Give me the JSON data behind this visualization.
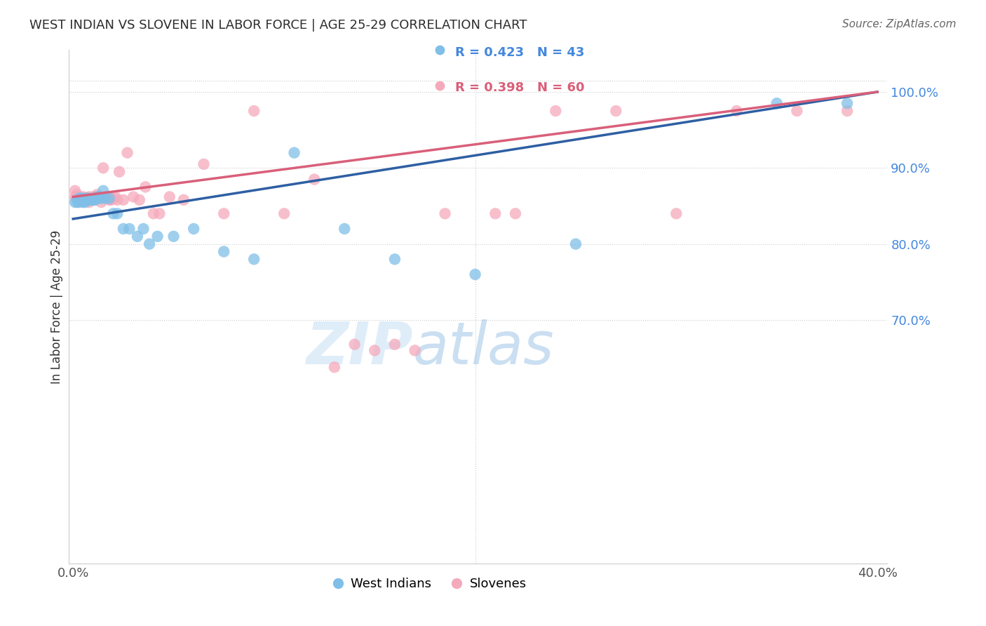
{
  "title": "WEST INDIAN VS SLOVENE IN LABOR FORCE | AGE 25-29 CORRELATION CHART",
  "source": "Source: ZipAtlas.com",
  "ylabel": "In Labor Force | Age 25-29",
  "blue_R": 0.423,
  "blue_N": 43,
  "pink_R": 0.398,
  "pink_N": 60,
  "blue_color": "#7fbfe8",
  "pink_color": "#f5aabc",
  "blue_line_color": "#2e5fa3",
  "pink_line_color": "#d95f7a",
  "title_color": "#2d2d2d",
  "source_color": "#666666",
  "right_axis_color": "#4488dd",
  "grid_color": "#cccccc",
  "background_color": "#ffffff",
  "xlim": [
    -0.002,
    0.405
  ],
  "ylim": [
    0.38,
    1.055
  ],
  "x_ticks": [
    0.0,
    0.4
  ],
  "x_tick_labels": [
    "0.0%",
    "40.0%"
  ],
  "y_ticks_right": [
    0.7,
    0.8,
    0.9,
    1.0
  ],
  "y_ticks_right_labels": [
    "70.0%",
    "80.0%",
    "90.0%",
    "100.0%"
  ],
  "blue_line_x0": 0.0,
  "blue_line_y0": 0.833,
  "blue_line_x1": 0.4,
  "blue_line_y1": 1.0,
  "pink_line_x0": 0.0,
  "pink_line_y0": 0.862,
  "pink_line_x1": 0.4,
  "pink_line_y1": 1.0,
  "blue_points_x": [
    0.001,
    0.002,
    0.003,
    0.003,
    0.004,
    0.004,
    0.005,
    0.005,
    0.005,
    0.006,
    0.006,
    0.007,
    0.007,
    0.008,
    0.009,
    0.01,
    0.01,
    0.011,
    0.012,
    0.013,
    0.014,
    0.015,
    0.016,
    0.018,
    0.02,
    0.022,
    0.025,
    0.028,
    0.032,
    0.035,
    0.038,
    0.042,
    0.05,
    0.06,
    0.075,
    0.09,
    0.11,
    0.135,
    0.16,
    0.2,
    0.25,
    0.35,
    0.385
  ],
  "blue_points_y": [
    0.855,
    0.855,
    0.86,
    0.855,
    0.858,
    0.86,
    0.857,
    0.86,
    0.855,
    0.858,
    0.855,
    0.86,
    0.86,
    0.858,
    0.858,
    0.86,
    0.858,
    0.858,
    0.862,
    0.862,
    0.86,
    0.87,
    0.86,
    0.86,
    0.84,
    0.84,
    0.82,
    0.82,
    0.81,
    0.82,
    0.8,
    0.81,
    0.81,
    0.82,
    0.79,
    0.78,
    0.92,
    0.82,
    0.78,
    0.76,
    0.8,
    0.985,
    0.985
  ],
  "pink_points_x": [
    0.001,
    0.001,
    0.002,
    0.002,
    0.003,
    0.003,
    0.004,
    0.004,
    0.005,
    0.005,
    0.006,
    0.006,
    0.007,
    0.007,
    0.008,
    0.008,
    0.009,
    0.01,
    0.01,
    0.011,
    0.012,
    0.013,
    0.014,
    0.015,
    0.016,
    0.017,
    0.018,
    0.019,
    0.02,
    0.021,
    0.022,
    0.023,
    0.025,
    0.027,
    0.03,
    0.033,
    0.036,
    0.04,
    0.043,
    0.048,
    0.055,
    0.065,
    0.075,
    0.09,
    0.105,
    0.12,
    0.14,
    0.16,
    0.185,
    0.21,
    0.24,
    0.27,
    0.3,
    0.33,
    0.36,
    0.385,
    0.13,
    0.15,
    0.17,
    0.22
  ],
  "pink_points_y": [
    0.862,
    0.87,
    0.865,
    0.86,
    0.862,
    0.858,
    0.86,
    0.858,
    0.862,
    0.858,
    0.86,
    0.858,
    0.86,
    0.858,
    0.862,
    0.855,
    0.858,
    0.862,
    0.858,
    0.858,
    0.865,
    0.862,
    0.855,
    0.9,
    0.862,
    0.862,
    0.858,
    0.858,
    0.86,
    0.862,
    0.858,
    0.895,
    0.858,
    0.92,
    0.862,
    0.858,
    0.875,
    0.84,
    0.84,
    0.862,
    0.858,
    0.905,
    0.84,
    0.975,
    0.84,
    0.885,
    0.668,
    0.668,
    0.84,
    0.84,
    0.975,
    0.975,
    0.84,
    0.975,
    0.975,
    0.975,
    0.638,
    0.66,
    0.66,
    0.84
  ]
}
